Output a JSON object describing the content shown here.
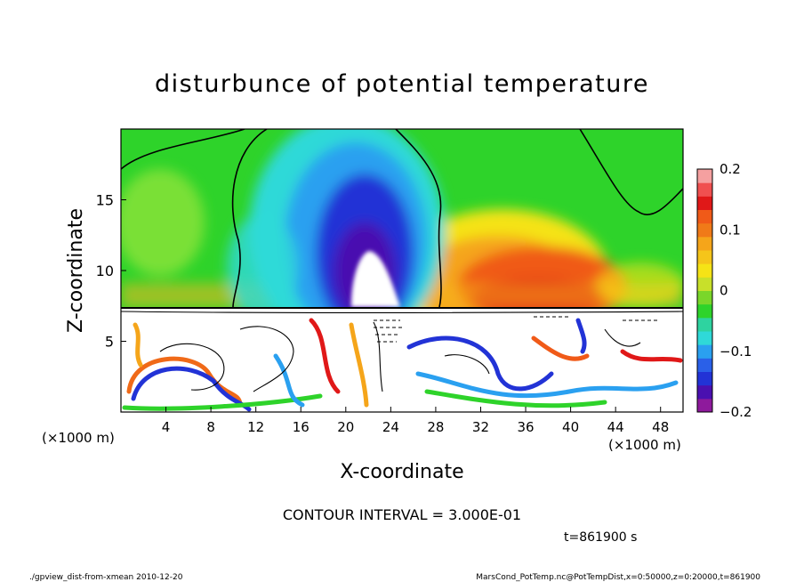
{
  "chart_data": {
    "type": "heatmap",
    "title": "disturbunce of potential temperature",
    "xlabel": "X-coordinate",
    "ylabel": "Z-coordinate",
    "x_unit_label": "(×1000 m)",
    "y_unit_label": "(×1000 m)",
    "x_ticks": [
      4,
      8,
      12,
      16,
      20,
      24,
      28,
      32,
      36,
      40,
      44,
      48
    ],
    "y_ticks": [
      5,
      10,
      15
    ],
    "xlim": [
      0,
      50
    ],
    "ylim": [
      0,
      20
    ],
    "colorbar": {
      "ticks": [
        "0.2",
        "0.1",
        "0",
        "−0.1",
        "−0.2"
      ],
      "tick_values": [
        0.2,
        0.1,
        0,
        -0.1,
        -0.2
      ],
      "range": [
        -0.2,
        0.2
      ]
    },
    "contour_interval_text": "CONTOUR INTERVAL = 3.000E-01",
    "time_text": "t=861900 s",
    "footer_left": "./gpview_dist-from-xmean  2010-12-20",
    "footer_right": "MarsCond_PotTemp.nc@PotTempDist,x=0:50000,z=0:20000,t=861900",
    "upper_layer": {
      "z_base": 7.3,
      "cold_plume": {
        "x_center": 20.5,
        "min_value": -0.2
      },
      "warm_region": {
        "x_center": 37,
        "max_value": 0.15
      }
    }
  }
}
